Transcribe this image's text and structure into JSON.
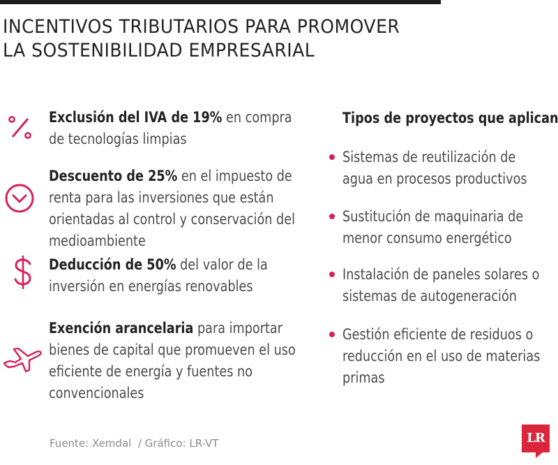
{
  "title": {
    "line1": "INCENTIVOS TRIBUTARIOS PARA PROMOVER",
    "line2": "LA SOSTENIBILIDAD EMPRESARIAL"
  },
  "incentives": [
    {
      "icon": "percent-icon",
      "bold": "Exclusión del IVA de 19%",
      "rest": " en compra de tecnologías limpias"
    },
    {
      "icon": "chevron-circle-icon",
      "bold": "Descuento de 25%",
      "rest": " en el impuesto de renta para las inversiones que están orientadas al control y conservación del medioambiente"
    },
    {
      "icon": "dollar-icon",
      "bold": "Deducción de 50%",
      "rest": " del valor de la inversión en energías renovables"
    },
    {
      "icon": "airplane-icon",
      "bold": "Exención arancelaria",
      "rest": " para importar bienes de capital que promueven el uso eficiente de energía y fuentes no convencionales"
    }
  ],
  "projects": {
    "heading": "Tipos de proyectos que aplican",
    "items": [
      "Sistemas de reutilización de agua en procesos productivos",
      "Sustitución de maquinaria de menor consumo energético",
      "Instalación de paneles solares o sistemas de autogeneración",
      "Gestión eficiente de residuos o reducción en el uso de materias primas"
    ]
  },
  "footer": "Fuente: Xemdal  / Gráfico: LR-VT",
  "logo": "LR",
  "colors": {
    "accent": "#d6205a",
    "logo": "#d9263c",
    "title": "#222222",
    "body": "#4a4a4a"
  }
}
